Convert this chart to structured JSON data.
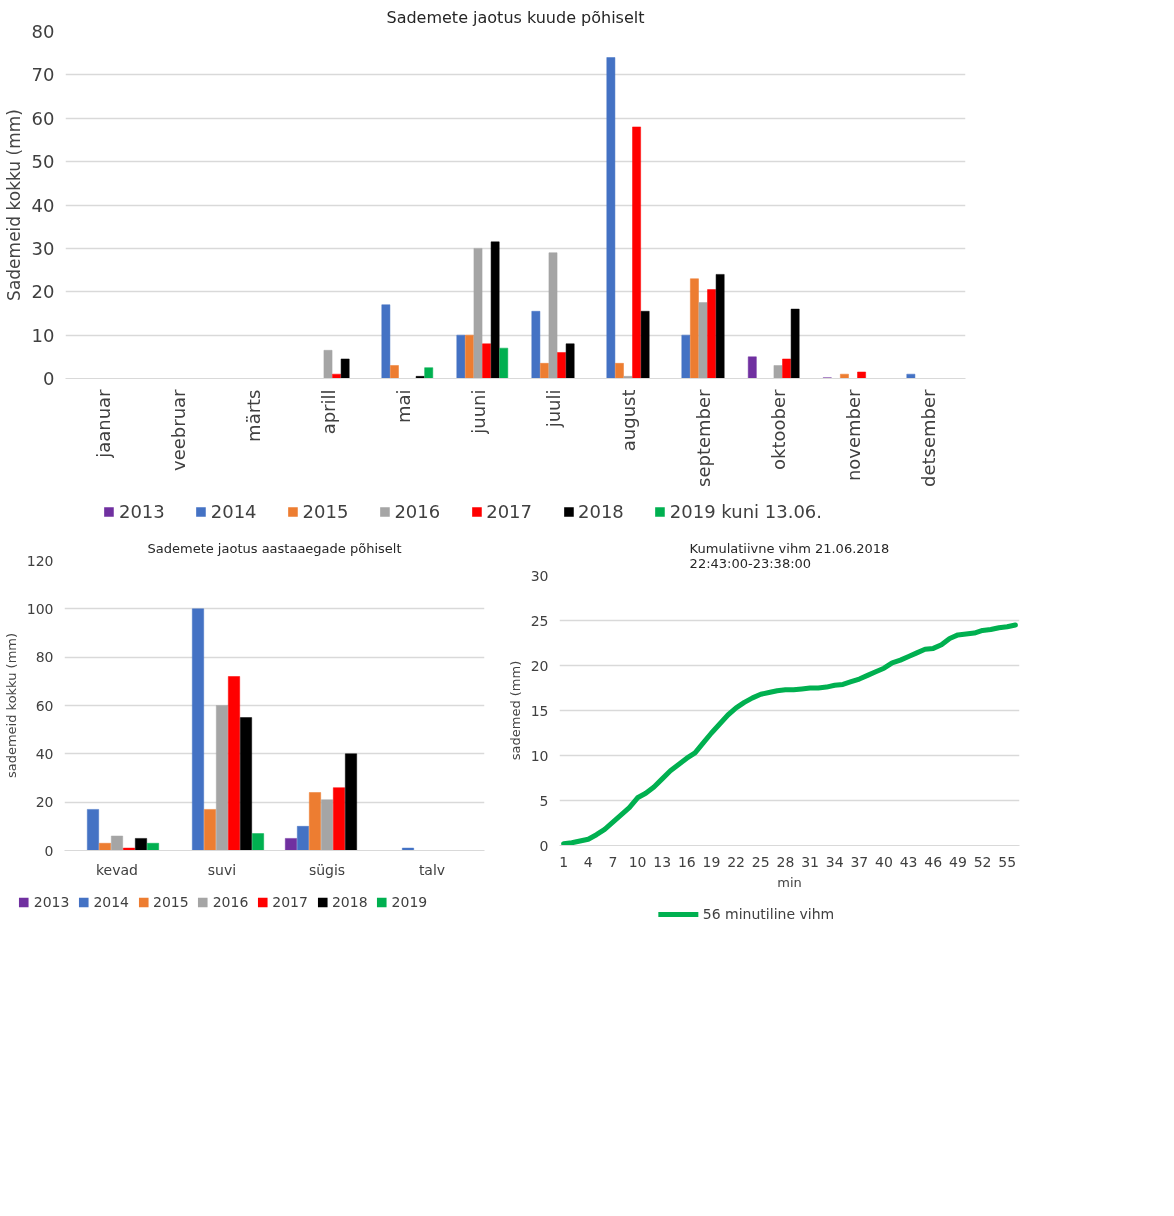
{
  "chart_data": [
    {
      "type": "bar",
      "title": "Sademete jaotus kuude põhiselt",
      "ylabel": "Sademeid kokku (mm)",
      "categories": [
        "jaanuar",
        "veebruar",
        "märts",
        "aprill",
        "mai",
        "juuni",
        "juuli",
        "august",
        "september",
        "oktoober",
        "november",
        "detsember"
      ],
      "ylim": [
        0,
        80
      ],
      "yticks": [
        0,
        10,
        20,
        30,
        40,
        50,
        60,
        70,
        80
      ],
      "grid": "y",
      "legend": "bottom",
      "series": [
        {
          "name": "2013",
          "color": "#7030a0",
          "values": [
            null,
            null,
            null,
            null,
            null,
            null,
            null,
            null,
            null,
            5,
            0.2,
            null
          ]
        },
        {
          "name": "2014",
          "color": "#4472c4",
          "values": [
            null,
            null,
            null,
            null,
            17,
            10,
            15.5,
            74,
            10,
            null,
            null,
            1
          ]
        },
        {
          "name": "2015",
          "color": "#ed7d31",
          "values": [
            null,
            null,
            null,
            null,
            3,
            10,
            3.5,
            3.5,
            23,
            null,
            1,
            null
          ]
        },
        {
          "name": "2016",
          "color": "#a5a5a5",
          "values": [
            null,
            null,
            null,
            6.5,
            null,
            30,
            29,
            0.5,
            17.5,
            3,
            null,
            null
          ]
        },
        {
          "name": "2017",
          "color": "#ff0000",
          "values": [
            null,
            null,
            null,
            1,
            null,
            8,
            6,
            58,
            20.5,
            4.5,
            1.5,
            null
          ]
        },
        {
          "name": "2018",
          "color": "#000000",
          "values": [
            null,
            null,
            null,
            4.5,
            0.5,
            31.5,
            8,
            15.5,
            24,
            16,
            null,
            null
          ]
        },
        {
          "name": "2019 kuni 13.06.",
          "color": "#00b050",
          "values": [
            null,
            null,
            null,
            null,
            2.5,
            7,
            null,
            null,
            null,
            null,
            null,
            null
          ]
        }
      ]
    },
    {
      "type": "bar",
      "title": "Sademete jaotus aastaaegade põhiselt",
      "ylabel": "sademeid kokku (mm)",
      "categories": [
        "kevad",
        "suvi",
        "sügis",
        "talv"
      ],
      "ylim": [
        0,
        120
      ],
      "yticks": [
        0,
        20,
        40,
        60,
        80,
        100,
        120
      ],
      "grid": "y",
      "legend": "bottom",
      "series": [
        {
          "name": "2013",
          "color": "#7030a0",
          "values": [
            null,
            null,
            5,
            null
          ]
        },
        {
          "name": "2014",
          "color": "#4472c4",
          "values": [
            17,
            100,
            10,
            1
          ]
        },
        {
          "name": "2015",
          "color": "#ed7d31",
          "values": [
            3,
            17,
            24,
            null
          ]
        },
        {
          "name": "2016",
          "color": "#a5a5a5",
          "values": [
            6,
            60,
            21,
            null
          ]
        },
        {
          "name": "2017",
          "color": "#ff0000",
          "values": [
            1,
            72,
            26,
            null
          ]
        },
        {
          "name": "2018",
          "color": "#000000",
          "values": [
            5,
            55,
            40,
            null
          ]
        },
        {
          "name": "2019",
          "color": "#00b050",
          "values": [
            3,
            7,
            null,
            null
          ]
        }
      ]
    },
    {
      "type": "line",
      "title": "Kumulatiivne vihm 21.06.2018\n22:43:00-23:38:00",
      "xlabel": "min",
      "ylabel": "sademed (mm)",
      "x": [
        1,
        2,
        3,
        4,
        5,
        6,
        7,
        8,
        9,
        10,
        11,
        12,
        13,
        14,
        15,
        16,
        17,
        18,
        19,
        20,
        21,
        22,
        23,
        24,
        25,
        26,
        27,
        28,
        29,
        30,
        31,
        32,
        33,
        34,
        35,
        36,
        37,
        38,
        39,
        40,
        41,
        42,
        43,
        44,
        45,
        46,
        47,
        48,
        49,
        50,
        51,
        52,
        53,
        54,
        55,
        56
      ],
      "xlim": [
        0.5,
        56.5
      ],
      "xticks": [
        1,
        4,
        7,
        10,
        13,
        16,
        19,
        22,
        25,
        28,
        31,
        34,
        37,
        40,
        43,
        46,
        49,
        52,
        55
      ],
      "ylim": [
        0,
        30
      ],
      "yticks": [
        0,
        5,
        10,
        15,
        20,
        25,
        30
      ],
      "grid": "y",
      "legend": "bottom",
      "marker": "none",
      "line_style": "solid",
      "series": [
        {
          "name": "56 minutiline vihm",
          "color": "#00b050",
          "values": [
            0.2,
            0.3,
            0.5,
            0.7,
            1.2,
            1.8,
            2.6,
            3.4,
            4.2,
            5.3,
            5.8,
            6.5,
            7.4,
            8.3,
            9.0,
            9.7,
            10.3,
            11.4,
            12.5,
            13.5,
            14.5,
            15.3,
            15.9,
            16.4,
            16.8,
            17.0,
            17.2,
            17.3,
            17.3,
            17.4,
            17.5,
            17.5,
            17.6,
            17.8,
            17.9,
            18.2,
            18.5,
            18.9,
            19.3,
            19.7,
            20.3,
            20.6,
            21.0,
            21.4,
            21.8,
            21.9,
            22.3,
            23.0,
            23.4,
            23.5,
            23.6,
            23.9,
            24.0,
            24.2,
            24.3,
            24.5
          ]
        }
      ]
    }
  ]
}
